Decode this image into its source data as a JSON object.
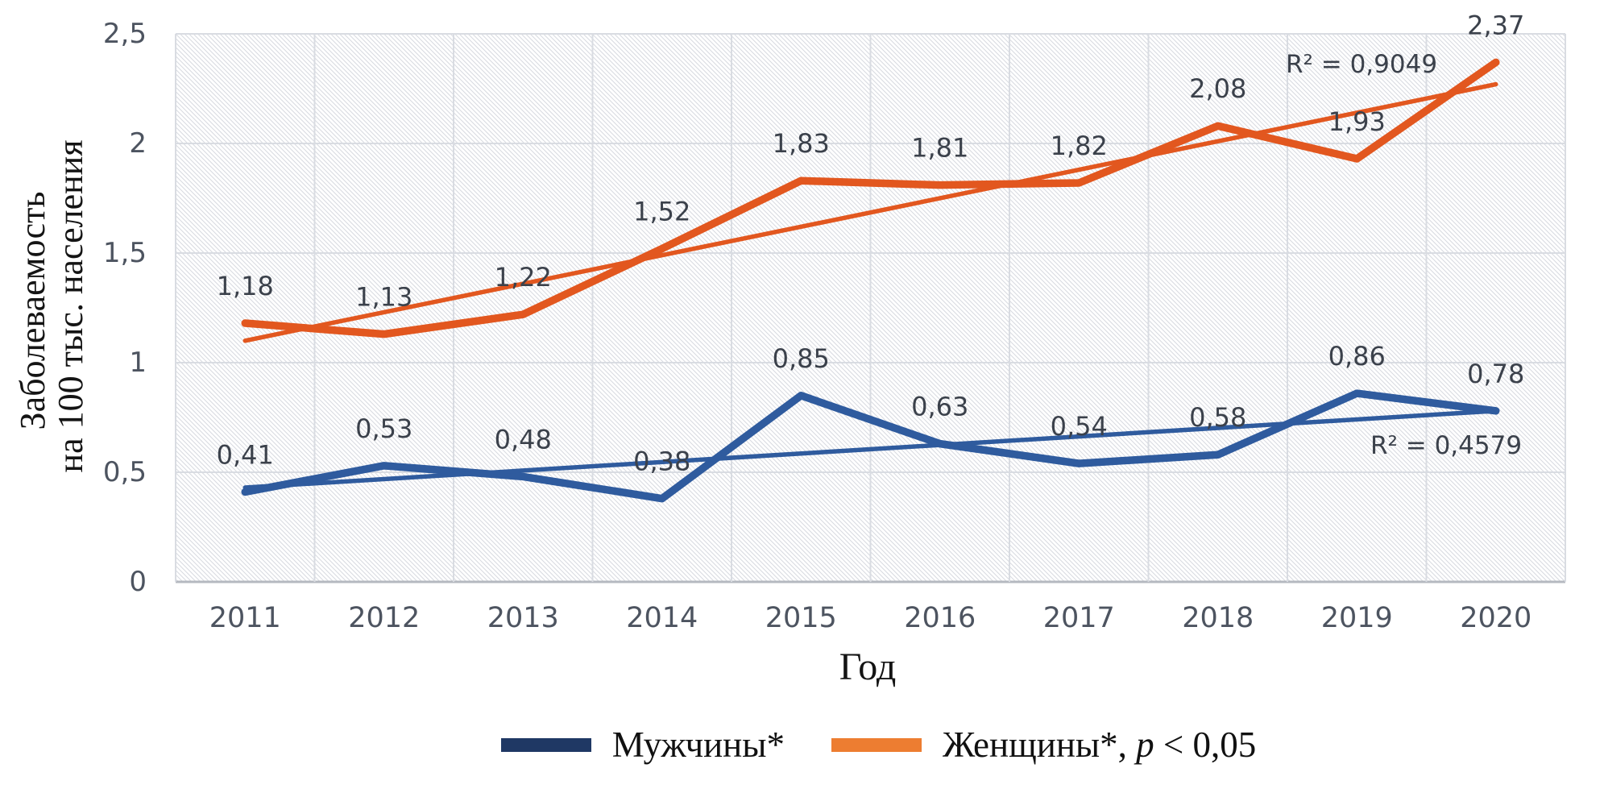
{
  "chart_data": {
    "type": "line",
    "xlabel": "Год",
    "ylabel_lines": [
      "Заболеваемость",
      "на 100 тыс. населения"
    ],
    "x": [
      2011,
      2012,
      2013,
      2014,
      2015,
      2016,
      2017,
      2018,
      2019,
      2020
    ],
    "ylim": [
      0,
      2.5
    ],
    "yticks": [
      0,
      0.5,
      1,
      1.5,
      2,
      2.5
    ],
    "ytick_labels": [
      "0",
      "0,5",
      "1",
      "1,5",
      "2",
      "2,5"
    ],
    "grid": true,
    "plot_background": "diagonal-hatch",
    "series": [
      {
        "name": "Мужчины*",
        "color": "#2f5b9e",
        "legend_color": "#1f3864",
        "values": [
          0.41,
          0.53,
          0.48,
          0.38,
          0.85,
          0.63,
          0.54,
          0.58,
          0.86,
          0.78
        ],
        "labels": [
          "0,41",
          "0,53",
          "0,48",
          "0,38",
          "0,85",
          "0,63",
          "0,54",
          "0,58",
          "0,86",
          "0,78"
        ],
        "trendline": {
          "start": 0.43,
          "end": 0.78,
          "r2": 0.4579,
          "r2_label": "R² = 0,4579"
        }
      },
      {
        "name": "Женщины*",
        "color": "#e2571f",
        "legend_color": "#ed7d31",
        "values": [
          1.18,
          1.13,
          1.22,
          1.52,
          1.83,
          1.81,
          1.82,
          2.08,
          1.93,
          2.37
        ],
        "labels": [
          "1,18",
          "1,13",
          "1,22",
          "1,52",
          "1,83",
          "1,81",
          "1,82",
          "2,08",
          "1,93",
          "2,37"
        ],
        "trendline": {
          "start": 1.1,
          "end": 2.27,
          "r2": 0.9049,
          "r2_label": "R² = 0,9049"
        }
      }
    ],
    "legend": {
      "position": "bottom",
      "men_label": "Мужчины*",
      "women_label": "Женщины*",
      "women_sep": ", ",
      "women_p_italic": "p",
      "women_p_rest": " < 0,05"
    }
  }
}
